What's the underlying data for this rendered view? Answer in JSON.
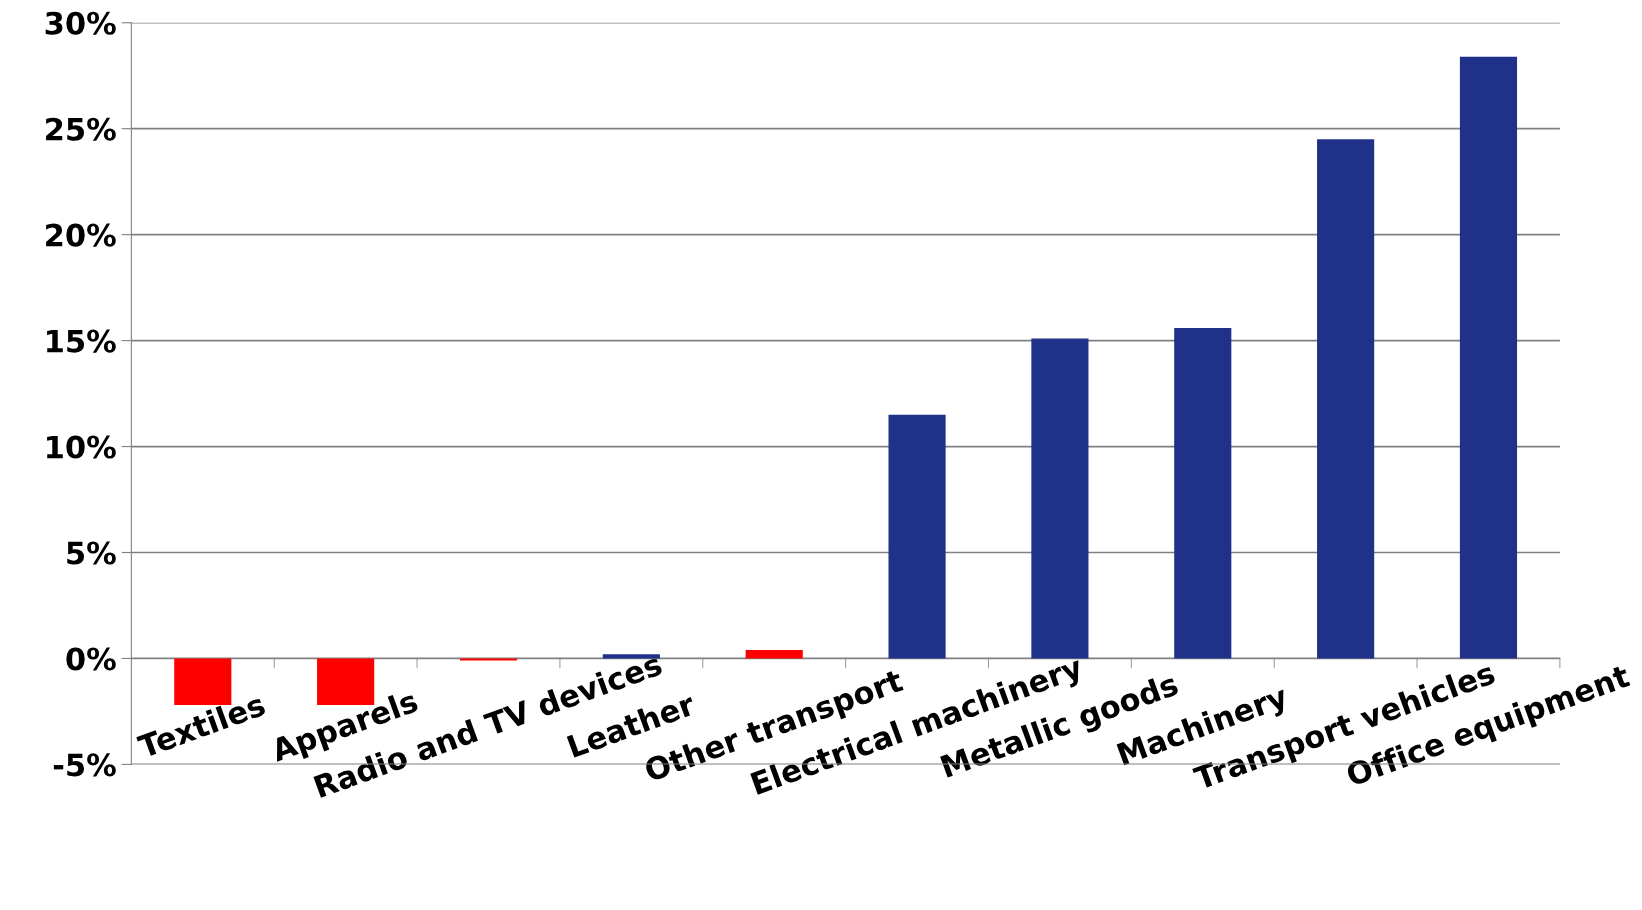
{
  "chart_data": {
    "type": "bar",
    "categories": [
      "Textiles",
      "Apparels",
      "Radio and TV devices",
      "Leather",
      "Other transport",
      "Electrical machinery",
      "Metallic goods",
      "Machinery",
      "Transport vehicles",
      "Office equipment"
    ],
    "values": [
      -2.2,
      -2.2,
      -0.1,
      0.2,
      0.4,
      11.5,
      15.1,
      15.6,
      24.5,
      28.4
    ],
    "colors": [
      "#ff0000",
      "#ff0000",
      "#ff0000",
      "#20318a",
      "#ff0000",
      "#20318a",
      "#20318a",
      "#20318a",
      "#20318a",
      "#20318a"
    ],
    "ylim": [
      -5,
      30
    ],
    "yticks": [
      {
        "value": -5,
        "label": "-5%"
      },
      {
        "value": 0,
        "label": "0%"
      },
      {
        "value": 5,
        "label": "5%"
      },
      {
        "value": 10,
        "label": "10%"
      },
      {
        "value": 15,
        "label": "15%"
      },
      {
        "value": 20,
        "label": "20%"
      },
      {
        "value": 25,
        "label": "25%"
      },
      {
        "value": 30,
        "label": "30%"
      }
    ],
    "grid": "y",
    "legend": false
  }
}
